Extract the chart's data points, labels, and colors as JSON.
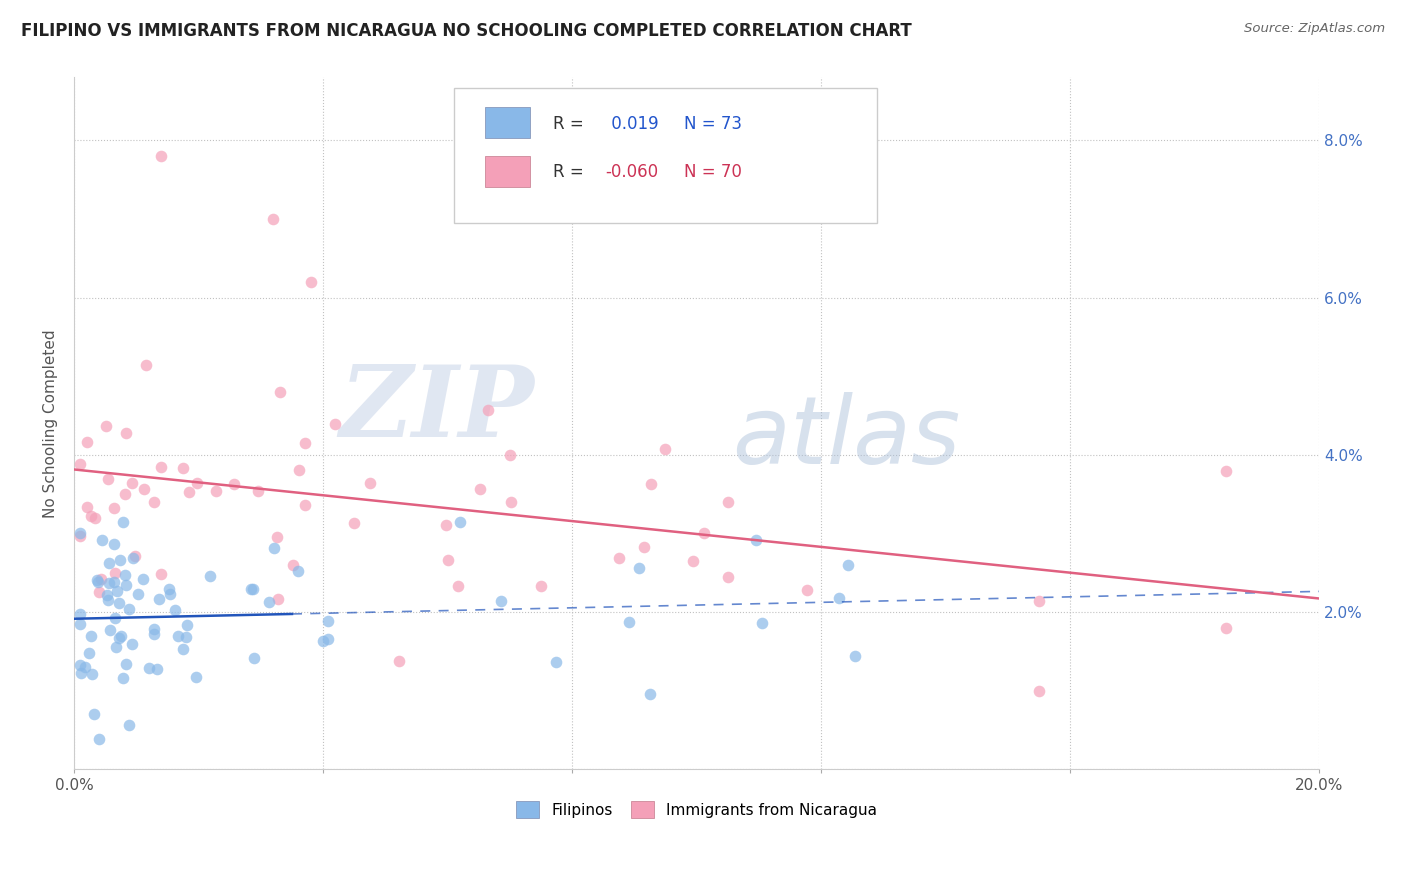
{
  "title": "FILIPINO VS IMMIGRANTS FROM NICARAGUA NO SCHOOLING COMPLETED CORRELATION CHART",
  "source": "Source: ZipAtlas.com",
  "ylabel": "No Schooling Completed",
  "xlim": [
    0.0,
    0.2
  ],
  "ylim": [
    0.0,
    0.088
  ],
  "filipino_R": 0.019,
  "filipino_N": 73,
  "nicaragua_R": -0.06,
  "nicaragua_N": 70,
  "filipino_color": "#89b8e8",
  "nicaragua_color": "#f4a0b8",
  "filipino_line_color": "#2255bb",
  "nicaragua_line_color": "#e06080",
  "watermark_zip": "ZIP",
  "watermark_atlas": "atlas",
  "zip_color": "#c8d4e8",
  "atlas_color": "#a8c0e0"
}
